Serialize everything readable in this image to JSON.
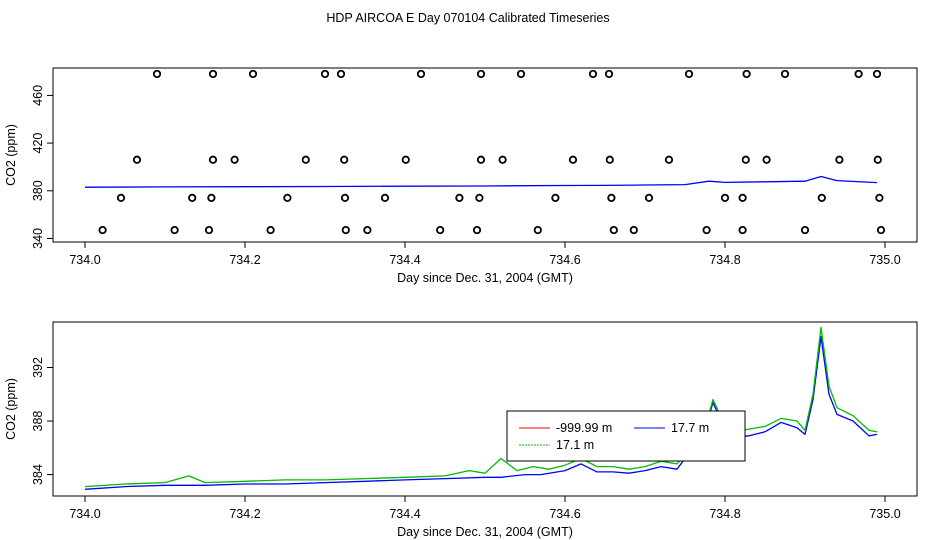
{
  "figure": {
    "title": "HDP AIRCOA E  Day 070104  Calibrated Timeseries"
  },
  "chart_data": [
    {
      "type": "scatter",
      "title": "",
      "xlabel": "Day since Dec. 31, 2004 (GMT)",
      "ylabel": "CO2 (ppm)",
      "xlim": [
        733.96,
        735.04
      ],
      "ylim": [
        337,
        483
      ],
      "xticks": [
        734.0,
        734.2,
        734.4,
        734.6,
        734.8,
        735.0
      ],
      "xtick_labels": [
        "734.0",
        "734.2",
        "734.4",
        "734.6",
        "734.8",
        "735.0"
      ],
      "yticks": [
        340,
        380,
        420,
        460
      ],
      "ytick_labels": [
        "340",
        "380",
        "420",
        "460"
      ],
      "grid": false,
      "legend": false,
      "series": [
        {
          "color": "#0000ff",
          "style": "line",
          "x": [
            734.0,
            734.1,
            734.2,
            734.3,
            734.4,
            734.5,
            734.55,
            734.6,
            734.65,
            734.7,
            734.75,
            734.78,
            734.8,
            734.85,
            734.9,
            734.92,
            734.94,
            734.99
          ],
          "y": [
            383.0,
            383.2,
            383.4,
            383.6,
            383.8,
            384.0,
            384.2,
            384.4,
            384.5,
            384.8,
            385.2,
            388.0,
            387.0,
            387.5,
            388.0,
            392.0,
            388.5,
            386.8
          ]
        },
        {
          "color": "#000000",
          "style": "markers",
          "marker": "open-circle",
          "x": [
            734.09,
            734.16,
            734.21,
            734.3,
            734.32,
            734.42,
            734.495,
            734.545,
            734.635,
            734.655,
            734.755,
            734.827,
            734.875,
            734.967,
            734.99,
            734.065,
            734.16,
            734.187,
            734.276,
            734.324,
            734.401,
            734.495,
            734.522,
            734.61,
            734.656,
            734.73,
            734.826,
            734.852,
            734.943,
            734.991,
            734.045,
            734.134,
            734.158,
            734.253,
            734.325,
            734.375,
            734.468,
            734.493,
            734.588,
            734.658,
            734.705,
            734.8,
            734.822,
            734.921,
            734.993,
            734.022,
            734.112,
            734.155,
            734.232,
            734.326,
            734.353,
            734.444,
            734.49,
            734.566,
            734.661,
            734.686,
            734.777,
            734.822,
            734.9,
            734.995
          ],
          "y": [
            478,
            478,
            478,
            478,
            478,
            478,
            478,
            478,
            478,
            478,
            478,
            478,
            478,
            478,
            478,
            406,
            406,
            406,
            406,
            406,
            406,
            406,
            406,
            406,
            406,
            406,
            406,
            406,
            406,
            406,
            374,
            374,
            374,
            374,
            374,
            374,
            374,
            374,
            374,
            374,
            374,
            374,
            374,
            374,
            374,
            347,
            347,
            347,
            347,
            347,
            347,
            347,
            347,
            347,
            347,
            347,
            347,
            347,
            347,
            347
          ]
        }
      ]
    },
    {
      "type": "line",
      "title": "",
      "xlabel": "Day since Dec. 31, 2004 (GMT)",
      "ylabel": "CO2 (ppm)",
      "xlim": [
        733.96,
        735.04
      ],
      "ylim": [
        382.4,
        395.4
      ],
      "xticks": [
        734.0,
        734.2,
        734.4,
        734.6,
        734.8,
        735.0
      ],
      "xtick_labels": [
        "734.0",
        "734.2",
        "734.4",
        "734.6",
        "734.8",
        "735.0"
      ],
      "yticks": [
        384,
        388,
        392
      ],
      "ytick_labels": [
        "384",
        "388",
        "392"
      ],
      "grid": false,
      "legend_position": "center",
      "series": [
        {
          "name": "-999.99 m",
          "color": "#ff0000",
          "x": [],
          "y": []
        },
        {
          "name": "17.7 m",
          "color": "#0000ff",
          "x": [
            734.0,
            734.05,
            734.1,
            734.15,
            734.2,
            734.25,
            734.3,
            734.35,
            734.4,
            734.45,
            734.5,
            734.52,
            734.55,
            734.57,
            734.6,
            734.62,
            734.64,
            734.66,
            734.68,
            734.7,
            734.72,
            734.74,
            734.76,
            734.775,
            734.785,
            734.795,
            734.81,
            734.83,
            734.85,
            734.87,
            734.89,
            734.9,
            734.91,
            734.92,
            734.93,
            734.94,
            734.96,
            734.98,
            734.99
          ],
          "y": [
            382.9,
            383.1,
            383.2,
            383.2,
            383.3,
            383.3,
            383.4,
            383.5,
            383.6,
            383.7,
            383.8,
            383.8,
            384.0,
            384.0,
            384.3,
            384.8,
            384.2,
            384.2,
            384.1,
            384.3,
            384.6,
            384.4,
            386.0,
            387.3,
            389.4,
            388.0,
            386.8,
            386.9,
            387.2,
            387.9,
            387.5,
            387.0,
            389.6,
            394.3,
            390.0,
            388.5,
            388.0,
            386.9,
            387.0
          ]
        },
        {
          "name": "17.1 m",
          "color": "#00bb00",
          "x": [
            734.0,
            734.05,
            734.1,
            734.13,
            734.15,
            734.2,
            734.25,
            734.3,
            734.35,
            734.4,
            734.45,
            734.48,
            734.5,
            734.52,
            734.54,
            734.56,
            734.58,
            734.6,
            734.62,
            734.64,
            734.66,
            734.68,
            734.7,
            734.72,
            734.74,
            734.76,
            734.775,
            734.785,
            734.795,
            734.81,
            734.83,
            734.85,
            734.87,
            734.89,
            734.9,
            734.91,
            734.92,
            734.93,
            734.94,
            734.96,
            734.98,
            734.99
          ],
          "y": [
            383.1,
            383.3,
            383.4,
            383.9,
            383.4,
            383.5,
            383.6,
            383.6,
            383.7,
            383.8,
            383.9,
            384.3,
            384.1,
            385.2,
            384.3,
            384.6,
            384.4,
            384.7,
            385.2,
            384.6,
            384.6,
            384.4,
            384.6,
            385.0,
            384.8,
            386.3,
            387.5,
            389.6,
            388.3,
            387.2,
            387.4,
            387.6,
            388.2,
            388.0,
            387.3,
            390.0,
            395.0,
            390.6,
            389.0,
            388.4,
            387.3,
            387.2
          ]
        }
      ]
    }
  ]
}
